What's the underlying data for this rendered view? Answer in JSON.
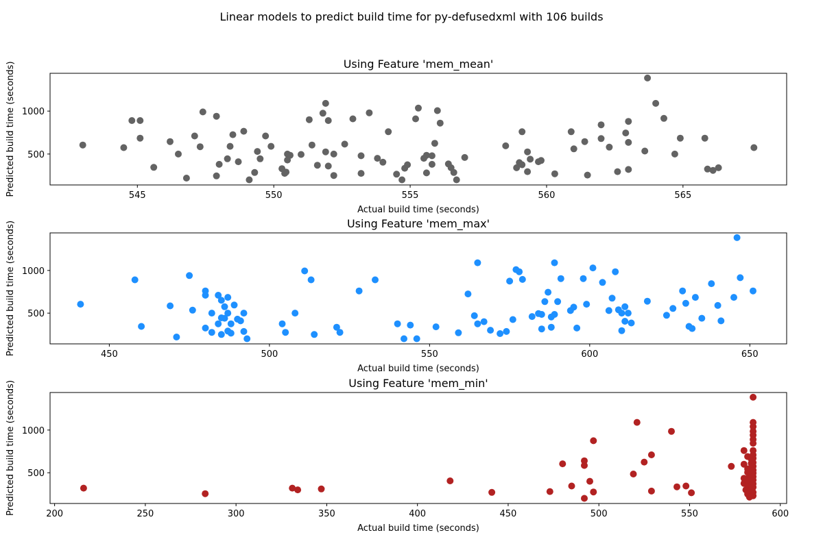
{
  "figure": {
    "title": "Linear models to predict build time for py-defusedxml with 106 builds"
  },
  "chart_data": [
    {
      "type": "scatter",
      "title": "Using Feature 'mem_mean'",
      "xlabel": "Actual build time (seconds)",
      "ylabel": "Predicted build time (seconds)",
      "color": "#636363",
      "xlim": [
        541.8,
        568.8
      ],
      "ylim": [
        140,
        1440
      ],
      "xticks": [
        545,
        550,
        555,
        560,
        565
      ],
      "yticks": [
        500,
        1000
      ],
      "points": [
        [
          543.0,
          605
        ],
        [
          544.5,
          575
        ],
        [
          544.8,
          890
        ],
        [
          545.1,
          890
        ],
        [
          545.1,
          685
        ],
        [
          545.6,
          345
        ],
        [
          546.2,
          645
        ],
        [
          546.5,
          500
        ],
        [
          546.8,
          220
        ],
        [
          547.1,
          710
        ],
        [
          547.3,
          585
        ],
        [
          547.4,
          990
        ],
        [
          547.9,
          940
        ],
        [
          547.9,
          245
        ],
        [
          548.0,
          380
        ],
        [
          548.3,
          445
        ],
        [
          548.4,
          590
        ],
        [
          548.5,
          725
        ],
        [
          548.7,
          410
        ],
        [
          548.9,
          765
        ],
        [
          549.1,
          200
        ],
        [
          549.3,
          285
        ],
        [
          549.4,
          530
        ],
        [
          549.5,
          445
        ],
        [
          549.7,
          710
        ],
        [
          549.9,
          590
        ],
        [
          550.3,
          330
        ],
        [
          550.4,
          275
        ],
        [
          550.45,
          290
        ],
        [
          550.5,
          430
        ],
        [
          550.5,
          500
        ],
        [
          550.6,
          485
        ],
        [
          551.0,
          495
        ],
        [
          551.3,
          900
        ],
        [
          551.4,
          605
        ],
        [
          551.6,
          370
        ],
        [
          551.8,
          975
        ],
        [
          551.9,
          1090
        ],
        [
          551.9,
          525
        ],
        [
          552.0,
          360
        ],
        [
          552.0,
          890
        ],
        [
          552.2,
          500
        ],
        [
          552.2,
          250
        ],
        [
          552.6,
          615
        ],
        [
          552.9,
          910
        ],
        [
          553.2,
          480
        ],
        [
          553.2,
          275
        ],
        [
          553.5,
          980
        ],
        [
          553.8,
          450
        ],
        [
          554.0,
          405
        ],
        [
          554.2,
          760
        ],
        [
          554.5,
          265
        ],
        [
          554.7,
          200
        ],
        [
          554.8,
          335
        ],
        [
          554.9,
          375
        ],
        [
          555.2,
          910
        ],
        [
          555.3,
          1035
        ],
        [
          555.5,
          450
        ],
        [
          555.6,
          485
        ],
        [
          555.6,
          280
        ],
        [
          555.8,
          480
        ],
        [
          555.8,
          380
        ],
        [
          555.9,
          625
        ],
        [
          556.0,
          1005
        ],
        [
          556.1,
          860
        ],
        [
          556.4,
          385
        ],
        [
          556.5,
          340
        ],
        [
          556.6,
          285
        ],
        [
          556.7,
          200
        ],
        [
          557.0,
          460
        ],
        [
          558.5,
          595
        ],
        [
          558.9,
          340
        ],
        [
          559.0,
          400
        ],
        [
          559.1,
          760
        ],
        [
          559.1,
          375
        ],
        [
          559.3,
          525
        ],
        [
          559.3,
          295
        ],
        [
          559.4,
          440
        ],
        [
          559.7,
          410
        ],
        [
          559.8,
          425
        ],
        [
          560.3,
          270
        ],
        [
          560.9,
          760
        ],
        [
          561.0,
          560
        ],
        [
          561.4,
          645
        ],
        [
          561.5,
          255
        ],
        [
          562.0,
          840
        ],
        [
          562.0,
          680
        ],
        [
          562.3,
          580
        ],
        [
          562.6,
          295
        ],
        [
          562.9,
          745
        ],
        [
          563.0,
          635
        ],
        [
          563.0,
          880
        ],
        [
          563.0,
          320
        ],
        [
          563.6,
          535
        ],
        [
          563.7,
          1385
        ],
        [
          564.0,
          1090
        ],
        [
          564.3,
          915
        ],
        [
          564.7,
          500
        ],
        [
          564.9,
          685
        ],
        [
          565.8,
          685
        ],
        [
          565.9,
          325
        ],
        [
          566.1,
          310
        ],
        [
          566.3,
          340
        ],
        [
          567.6,
          575
        ]
      ]
    },
    {
      "type": "scatter",
      "title": "Using Feature 'mem_max'",
      "xlabel": "Actual build time (seconds)",
      "ylabel": "Predicted build time (seconds)",
      "color": "#1e90ff",
      "xlim": [
        431.5,
        661.5
      ],
      "ylim": [
        140,
        1440
      ],
      "xticks": [
        450,
        500,
        550,
        600,
        650
      ],
      "yticks": [
        500,
        1000
      ],
      "points": [
        [
          441,
          605
        ],
        [
          458,
          890
        ],
        [
          460,
          345
        ],
        [
          469,
          585
        ],
        [
          471,
          220
        ],
        [
          475,
          940
        ],
        [
          476,
          535
        ],
        [
          480,
          710
        ],
        [
          480,
          760
        ],
        [
          480,
          325
        ],
        [
          482,
          500
        ],
        [
          482,
          275
        ],
        [
          484,
          710
        ],
        [
          484,
          375
        ],
        [
          485,
          650
        ],
        [
          485,
          445
        ],
        [
          485,
          250
        ],
        [
          486,
          575
        ],
        [
          486,
          440
        ],
        [
          487,
          685
        ],
        [
          487,
          500
        ],
        [
          487,
          290
        ],
        [
          488,
          265
        ],
        [
          488,
          375
        ],
        [
          489,
          595
        ],
        [
          490,
          430
        ],
        [
          491,
          410
        ],
        [
          492,
          285
        ],
        [
          492,
          500
        ],
        [
          493,
          200
        ],
        [
          504,
          375
        ],
        [
          505,
          275
        ],
        [
          508,
          500
        ],
        [
          511,
          995
        ],
        [
          513,
          890
        ],
        [
          514,
          250
        ],
        [
          521,
          335
        ],
        [
          522,
          275
        ],
        [
          528,
          760
        ],
        [
          533,
          890
        ],
        [
          540,
          375
        ],
        [
          542,
          200
        ],
        [
          544,
          360
        ],
        [
          546,
          200
        ],
        [
          552,
          340
        ],
        [
          559,
          270
        ],
        [
          562,
          725
        ],
        [
          564,
          470
        ],
        [
          565,
          1090
        ],
        [
          565,
          375
        ],
        [
          567,
          400
        ],
        [
          569,
          300
        ],
        [
          572,
          260
        ],
        [
          574,
          285
        ],
        [
          575,
          875
        ],
        [
          576,
          425
        ],
        [
          577,
          1010
        ],
        [
          578,
          985
        ],
        [
          579,
          895
        ],
        [
          582,
          460
        ],
        [
          584,
          495
        ],
        [
          585,
          315
        ],
        [
          585,
          485
        ],
        [
          586,
          635
        ],
        [
          587,
          745
        ],
        [
          588,
          335
        ],
        [
          588,
          455
        ],
        [
          589,
          1090
        ],
        [
          589,
          485
        ],
        [
          590,
          635
        ],
        [
          591,
          905
        ],
        [
          594,
          530
        ],
        [
          595,
          570
        ],
        [
          596,
          325
        ],
        [
          598,
          905
        ],
        [
          599,
          605
        ],
        [
          601,
          1030
        ],
        [
          604,
          860
        ],
        [
          606,
          530
        ],
        [
          607,
          675
        ],
        [
          608,
          985
        ],
        [
          609,
          540
        ],
        [
          610,
          295
        ],
        [
          610,
          500
        ],
        [
          611,
          575
        ],
        [
          611,
          405
        ],
        [
          612,
          500
        ],
        [
          613,
          385
        ],
        [
          618,
          640
        ],
        [
          624,
          475
        ],
        [
          626,
          555
        ],
        [
          629,
          760
        ],
        [
          630,
          615
        ],
        [
          631,
          345
        ],
        [
          632,
          320
        ],
        [
          633,
          685
        ],
        [
          635,
          440
        ],
        [
          638,
          845
        ],
        [
          640,
          590
        ],
        [
          641,
          410
        ],
        [
          645,
          685
        ],
        [
          646,
          1385
        ],
        [
          647,
          915
        ],
        [
          651,
          760
        ]
      ]
    },
    {
      "type": "scatter",
      "title": "Using Feature 'mem_min'",
      "xlabel": "Actual build time (seconds)",
      "ylabel": "Predicted build time (seconds)",
      "color": "#b22222",
      "xlim": [
        197.5,
        603.5
      ],
      "ylim": [
        140,
        1440
      ],
      "xticks": [
        200,
        250,
        300,
        350,
        400,
        450,
        500,
        550,
        600
      ],
      "yticks": [
        500,
        1000
      ],
      "points": [
        [
          216,
          320
        ],
        [
          283,
          255
        ],
        [
          331,
          320
        ],
        [
          334,
          300
        ],
        [
          347,
          310
        ],
        [
          418,
          405
        ],
        [
          441,
          270
        ],
        [
          473,
          280
        ],
        [
          480,
          605
        ],
        [
          485,
          345
        ],
        [
          492,
          640
        ],
        [
          492,
          585
        ],
        [
          492,
          200
        ],
        [
          495,
          400
        ],
        [
          497,
          275
        ],
        [
          497,
          875
        ],
        [
          519,
          485
        ],
        [
          521,
          1090
        ],
        [
          525,
          625
        ],
        [
          529,
          710
        ],
        [
          529,
          285
        ],
        [
          540,
          985
        ],
        [
          543,
          335
        ],
        [
          548,
          345
        ],
        [
          551,
          265
        ],
        [
          573,
          575
        ],
        [
          580,
          760
        ],
        [
          580,
          600
        ],
        [
          580,
          435
        ],
        [
          580,
          375
        ],
        [
          581,
          420
        ],
        [
          581,
          300
        ],
        [
          582,
          690
        ],
        [
          582,
          545
        ],
        [
          582,
          505
        ],
        [
          582,
          350
        ],
        [
          582,
          250
        ],
        [
          583,
          470
        ],
        [
          583,
          405
        ],
        [
          583,
          320
        ],
        [
          583,
          215
        ],
        [
          584,
          660
        ],
        [
          584,
          610
        ],
        [
          584,
          560
        ],
        [
          584,
          520
        ],
        [
          584,
          465
        ],
        [
          584,
          440
        ],
        [
          584,
          390
        ],
        [
          584,
          355
        ],
        [
          584,
          290
        ],
        [
          585,
          1385
        ],
        [
          585,
          1090
        ],
        [
          585,
          1040
        ],
        [
          585,
          985
        ],
        [
          585,
          940
        ],
        [
          585,
          890
        ],
        [
          585,
          845
        ],
        [
          585,
          760
        ],
        [
          585,
          710
        ],
        [
          585,
          670
        ],
        [
          585,
          620
        ],
        [
          585,
          575
        ],
        [
          585,
          530
        ],
        [
          585,
          495
        ],
        [
          585,
          455
        ],
        [
          585,
          415
        ],
        [
          585,
          370
        ],
        [
          585,
          330
        ],
        [
          585,
          270
        ],
        [
          585,
          230
        ]
      ]
    }
  ]
}
